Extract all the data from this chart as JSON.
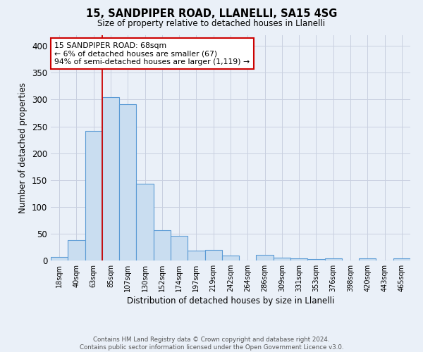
{
  "title1": "15, SANDPIPER ROAD, LLANELLI, SA15 4SG",
  "title2": "Size of property relative to detached houses in Llanelli",
  "xlabel": "Distribution of detached houses by size in Llanelli",
  "ylabel": "Number of detached properties",
  "footnote1": "Contains HM Land Registry data © Crown copyright and database right 2024.",
  "footnote2": "Contains public sector information licensed under the Open Government Licence v3.0.",
  "bin_labels": [
    "18sqm",
    "40sqm",
    "63sqm",
    "85sqm",
    "107sqm",
    "130sqm",
    "152sqm",
    "174sqm",
    "197sqm",
    "219sqm",
    "242sqm",
    "264sqm",
    "286sqm",
    "309sqm",
    "331sqm",
    "353sqm",
    "376sqm",
    "398sqm",
    "420sqm",
    "443sqm",
    "465sqm"
  ],
  "bar_values": [
    7,
    38,
    242,
    305,
    291,
    143,
    56,
    46,
    19,
    20,
    9,
    0,
    11,
    5,
    4,
    3,
    4,
    0,
    4,
    0,
    4
  ],
  "bar_color": "#c9ddf0",
  "bar_edge_color": "#5b9bd5",
  "grid_color": "#c8d0e0",
  "bg_color": "#eaf0f8",
  "vline_color": "#cc0000",
  "annotation_text": "15 SANDPIPER ROAD: 68sqm\n← 6% of detached houses are smaller (67)\n94% of semi-detached houses are larger (1,119) →",
  "annotation_box_color": "white",
  "annotation_box_edge": "#cc0000",
  "ylim": [
    0,
    420
  ],
  "yticks": [
    0,
    50,
    100,
    150,
    200,
    250,
    300,
    350,
    400
  ],
  "vline_bin_index": 2
}
